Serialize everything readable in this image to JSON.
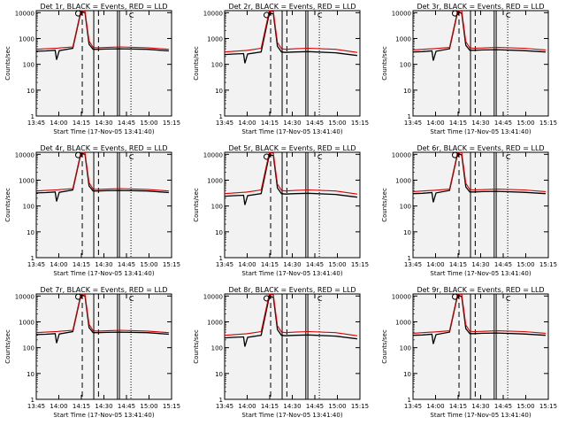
{
  "figure": {
    "background": "#ffffff",
    "plot_background": "#f2f2f2",
    "black_color": "#000000",
    "red_color": "#d40000"
  },
  "chart_data": [
    {
      "type": "line",
      "detector": "1",
      "title": "Det 1r, BLACK = Events, RED = LLD",
      "xlabel": "Start Time (17-Nov-05 13:41:40)",
      "ylabel": "Counts/sec",
      "xticks": [
        "13:45",
        "14:00",
        "14:15",
        "14:30",
        "14:45",
        "15:00",
        "15:15"
      ],
      "yticks": [
        "1",
        "10",
        "100",
        "1000",
        "10000"
      ],
      "yscale": "log",
      "ylim": [
        1,
        12000
      ],
      "series": [
        {
          "name": "Events",
          "color": "#000000",
          "x": [
            0,
            7,
            14,
            15,
            17,
            27,
            33,
            36,
            39,
            42,
            45,
            52,
            62,
            82,
            98
          ],
          "y": [
            320,
            330,
            350,
            150,
            340,
            420,
            11000,
            10000,
            600,
            380,
            380,
            390,
            400,
            380,
            330
          ]
        },
        {
          "name": "LLD",
          "color": "#d40000",
          "x": [
            0,
            7,
            14,
            15,
            17,
            27,
            33,
            36,
            39,
            42,
            45,
            52,
            62,
            82,
            98
          ],
          "y": [
            380,
            400,
            420,
            420,
            430,
            470,
            12000,
            11500,
            800,
            450,
            440,
            450,
            470,
            440,
            380
          ]
        }
      ],
      "markers": [
        {
          "style": "solid",
          "x": [
            42.5,
            60,
            61.5
          ]
        },
        {
          "style": "dashed",
          "x": [
            34,
            46
          ]
        },
        {
          "style": "dotted",
          "x": [
            70
          ]
        }
      ],
      "flag_label": "C"
    },
    {
      "type": "line",
      "detector": "2",
      "title": "Det 2r, BLACK = Events, RED = LLD",
      "xlabel": "Start Time (17-Nov-05 13:41:40)",
      "ylabel": "Counts/sec",
      "xticks": [
        "13:45",
        "14:00",
        "14:15",
        "14:30",
        "14:45",
        "15:00",
        "15:15"
      ],
      "yticks": [
        "1",
        "10",
        "100",
        "1000",
        "10000"
      ],
      "yscale": "log",
      "ylim": [
        1,
        12000
      ],
      "series": [
        {
          "name": "Events",
          "color": "#000000",
          "x": [
            0,
            7,
            14,
            15,
            17,
            27,
            33,
            36,
            39,
            42,
            45,
            52,
            62,
            82,
            98
          ],
          "y": [
            240,
            250,
            260,
            110,
            250,
            300,
            9500,
            9000,
            500,
            300,
            290,
            300,
            310,
            280,
            220
          ]
        },
        {
          "name": "LLD",
          "color": "#d40000",
          "x": [
            0,
            7,
            14,
            15,
            17,
            27,
            33,
            36,
            39,
            42,
            45,
            52,
            62,
            82,
            98
          ],
          "y": [
            300,
            320,
            340,
            340,
            350,
            420,
            12000,
            11000,
            700,
            400,
            380,
            400,
            420,
            380,
            290
          ]
        }
      ],
      "markers": [
        {
          "style": "solid",
          "x": [
            42.5,
            60,
            61.5
          ]
        },
        {
          "style": "dashed",
          "x": [
            34,
            46
          ]
        },
        {
          "style": "dotted",
          "x": [
            70
          ]
        }
      ],
      "flag_label": "C"
    },
    {
      "type": "line",
      "detector": "3",
      "title": "Det 3r, BLACK = Events, RED = LLD",
      "xlabel": "Start Time (17-Nov-05 13:41:40)",
      "ylabel": "Counts/sec",
      "xticks": [
        "13:45",
        "14:00",
        "14:15",
        "14:30",
        "14:45",
        "15:00",
        "15:15"
      ],
      "yticks": [
        "1",
        "10",
        "100",
        "1000",
        "10000"
      ],
      "yscale": "log",
      "ylim": [
        1,
        12000
      ],
      "series": [
        {
          "name": "Events",
          "color": "#000000",
          "x": [
            0,
            7,
            14,
            15,
            17,
            27,
            33,
            36,
            39,
            42,
            45,
            52,
            62,
            82,
            98
          ],
          "y": [
            300,
            310,
            330,
            140,
            320,
            400,
            11000,
            9500,
            550,
            350,
            350,
            360,
            370,
            340,
            300
          ]
        },
        {
          "name": "LLD",
          "color": "#d40000",
          "x": [
            0,
            7,
            14,
            15,
            17,
            27,
            33,
            36,
            39,
            42,
            45,
            52,
            62,
            82,
            98
          ],
          "y": [
            360,
            380,
            400,
            400,
            410,
            450,
            12000,
            11500,
            750,
            430,
            420,
            430,
            450,
            420,
            360
          ]
        }
      ],
      "markers": [
        {
          "style": "solid",
          "x": [
            42.5,
            60,
            61.5
          ]
        },
        {
          "style": "dashed",
          "x": [
            34,
            46
          ]
        },
        {
          "style": "dotted",
          "x": [
            70
          ]
        }
      ],
      "flag_label": "C"
    },
    {
      "type": "line",
      "detector": "4",
      "title": "Det 4r, BLACK = Events, RED = LLD",
      "xlabel": "Start Time (17-Nov-05 13:41:40)",
      "ylabel": "Counts/sec",
      "xticks": [
        "13:45",
        "14:00",
        "14:15",
        "14:30",
        "14:45",
        "15:00",
        "15:15"
      ],
      "yticks": [
        "1",
        "10",
        "100",
        "1000",
        "10000"
      ],
      "yscale": "log",
      "ylim": [
        1,
        12000
      ],
      "series": [
        {
          "name": "Events",
          "color": "#000000",
          "x": [
            0,
            7,
            14,
            15,
            17,
            27,
            33,
            36,
            39,
            42,
            45,
            52,
            62,
            82,
            98
          ],
          "y": [
            320,
            330,
            350,
            150,
            340,
            420,
            11000,
            10000,
            600,
            380,
            380,
            390,
            400,
            380,
            330
          ]
        },
        {
          "name": "LLD",
          "color": "#d40000",
          "x": [
            0,
            7,
            14,
            15,
            17,
            27,
            33,
            36,
            39,
            42,
            45,
            52,
            62,
            82,
            98
          ],
          "y": [
            380,
            400,
            420,
            420,
            430,
            470,
            12000,
            11500,
            800,
            450,
            440,
            450,
            470,
            440,
            380
          ]
        }
      ],
      "markers": [
        {
          "style": "solid",
          "x": [
            42.5,
            60,
            61.5
          ]
        },
        {
          "style": "dashed",
          "x": [
            34,
            46
          ]
        },
        {
          "style": "dotted",
          "x": [
            70
          ]
        }
      ],
      "flag_label": "C"
    },
    {
      "type": "line",
      "detector": "5",
      "title": "Det 5r, BLACK = Events, RED = LLD",
      "xlabel": "Start Time (17-Nov-05 13:41:40)",
      "ylabel": "Counts/sec",
      "xticks": [
        "13:45",
        "14:00",
        "14:15",
        "14:30",
        "14:45",
        "15:00",
        "15:15"
      ],
      "yticks": [
        "1",
        "10",
        "100",
        "1000",
        "10000"
      ],
      "yscale": "log",
      "ylim": [
        1,
        12000
      ],
      "series": [
        {
          "name": "Events",
          "color": "#000000",
          "x": [
            0,
            7,
            14,
            15,
            17,
            27,
            33,
            36,
            39,
            42,
            45,
            52,
            62,
            82,
            98
          ],
          "y": [
            240,
            250,
            260,
            110,
            250,
            300,
            9500,
            9000,
            500,
            300,
            290,
            300,
            310,
            280,
            220
          ]
        },
        {
          "name": "LLD",
          "color": "#d40000",
          "x": [
            0,
            7,
            14,
            15,
            17,
            27,
            33,
            36,
            39,
            42,
            45,
            52,
            62,
            82,
            98
          ],
          "y": [
            300,
            320,
            340,
            340,
            350,
            420,
            12000,
            11000,
            700,
            400,
            380,
            400,
            420,
            380,
            290
          ]
        }
      ],
      "markers": [
        {
          "style": "solid",
          "x": [
            42.5,
            60,
            61.5
          ]
        },
        {
          "style": "dashed",
          "x": [
            34,
            46
          ]
        },
        {
          "style": "dotted",
          "x": [
            70
          ]
        }
      ],
      "flag_label": "C"
    },
    {
      "type": "line",
      "detector": "6",
      "title": "Det 6r, BLACK = Events, RED = LLD",
      "xlabel": "Start Time (17-Nov-05 13:41:40)",
      "ylabel": "Counts/sec",
      "xticks": [
        "13:45",
        "14:00",
        "14:15",
        "14:30",
        "14:45",
        "15:00",
        "15:15"
      ],
      "yticks": [
        "1",
        "10",
        "100",
        "1000",
        "10000"
      ],
      "yscale": "log",
      "ylim": [
        1,
        12000
      ],
      "series": [
        {
          "name": "Events",
          "color": "#000000",
          "x": [
            0,
            7,
            14,
            15,
            17,
            27,
            33,
            36,
            39,
            42,
            45,
            52,
            62,
            82,
            98
          ],
          "y": [
            300,
            310,
            330,
            140,
            320,
            400,
            11000,
            9500,
            550,
            350,
            350,
            360,
            370,
            340,
            300
          ]
        },
        {
          "name": "LLD",
          "color": "#d40000",
          "x": [
            0,
            7,
            14,
            15,
            17,
            27,
            33,
            36,
            39,
            42,
            45,
            52,
            62,
            82,
            98
          ],
          "y": [
            360,
            380,
            400,
            400,
            410,
            450,
            12000,
            11500,
            750,
            430,
            420,
            430,
            450,
            420,
            360
          ]
        }
      ],
      "markers": [
        {
          "style": "solid",
          "x": [
            42.5,
            60,
            61.5
          ]
        },
        {
          "style": "dashed",
          "x": [
            34,
            46
          ]
        },
        {
          "style": "dotted",
          "x": [
            70
          ]
        }
      ],
      "flag_label": "C"
    },
    {
      "type": "line",
      "detector": "7",
      "title": "Det 7r, BLACK = Events, RED = LLD",
      "xlabel": "Start Time (17-Nov-05 13:41:40)",
      "ylabel": "Counts/sec",
      "xticks": [
        "13:45",
        "14:00",
        "14:15",
        "14:30",
        "14:45",
        "15:00",
        "15:15"
      ],
      "yticks": [
        "1",
        "10",
        "100",
        "1000",
        "10000"
      ],
      "yscale": "log",
      "ylim": [
        1,
        12000
      ],
      "series": [
        {
          "name": "Events",
          "color": "#000000",
          "x": [
            0,
            7,
            14,
            15,
            17,
            27,
            33,
            36,
            39,
            42,
            45,
            52,
            62,
            82,
            98
          ],
          "y": [
            320,
            330,
            350,
            150,
            340,
            420,
            11000,
            10000,
            600,
            380,
            380,
            390,
            400,
            380,
            330
          ]
        },
        {
          "name": "LLD",
          "color": "#d40000",
          "x": [
            0,
            7,
            14,
            15,
            17,
            27,
            33,
            36,
            39,
            42,
            45,
            52,
            62,
            82,
            98
          ],
          "y": [
            380,
            400,
            420,
            420,
            430,
            470,
            12000,
            11500,
            800,
            450,
            440,
            450,
            470,
            440,
            380
          ]
        }
      ],
      "markers": [
        {
          "style": "solid",
          "x": [
            42.5,
            60,
            61.5
          ]
        },
        {
          "style": "dashed",
          "x": [
            34,
            46
          ]
        },
        {
          "style": "dotted",
          "x": [
            70
          ]
        }
      ],
      "flag_label": "C"
    },
    {
      "type": "line",
      "detector": "8",
      "title": "Det 8r, BLACK = Events, RED = LLD",
      "xlabel": "Start Time (17-Nov-05 13:41:40)",
      "ylabel": "Counts/sec",
      "xticks": [
        "13:45",
        "14:00",
        "14:15",
        "14:30",
        "14:45",
        "15:00",
        "15:15"
      ],
      "yticks": [
        "1",
        "10",
        "100",
        "1000",
        "10000"
      ],
      "yscale": "log",
      "ylim": [
        1,
        12000
      ],
      "series": [
        {
          "name": "Events",
          "color": "#000000",
          "x": [
            0,
            7,
            14,
            15,
            17,
            27,
            33,
            36,
            39,
            42,
            45,
            52,
            62,
            82,
            98
          ],
          "y": [
            240,
            250,
            260,
            110,
            250,
            300,
            9500,
            9000,
            500,
            300,
            290,
            300,
            310,
            280,
            220
          ]
        },
        {
          "name": "LLD",
          "color": "#d40000",
          "x": [
            0,
            7,
            14,
            15,
            17,
            27,
            33,
            36,
            39,
            42,
            45,
            52,
            62,
            82,
            98
          ],
          "y": [
            300,
            320,
            340,
            340,
            350,
            420,
            12000,
            11000,
            700,
            400,
            380,
            400,
            420,
            380,
            290
          ]
        }
      ],
      "markers": [
        {
          "style": "solid",
          "x": [
            42.5,
            60,
            61.5
          ]
        },
        {
          "style": "dashed",
          "x": [
            34,
            46
          ]
        },
        {
          "style": "dotted",
          "x": [
            70
          ]
        }
      ],
      "flag_label": "C"
    },
    {
      "type": "line",
      "detector": "9",
      "title": "Det 9r, BLACK = Events, RED = LLD",
      "xlabel": "Start Time (17-Nov-05 13:41:40)",
      "ylabel": "Counts/sec",
      "xticks": [
        "13:45",
        "14:00",
        "14:15",
        "14:30",
        "14:45",
        "15:00",
        "15:15"
      ],
      "yticks": [
        "1",
        "10",
        "100",
        "1000",
        "10000"
      ],
      "yscale": "log",
      "ylim": [
        1,
        12000
      ],
      "series": [
        {
          "name": "Events",
          "color": "#000000",
          "x": [
            0,
            7,
            14,
            15,
            17,
            27,
            33,
            36,
            39,
            42,
            45,
            52,
            62,
            82,
            98
          ],
          "y": [
            300,
            310,
            330,
            140,
            320,
            400,
            11000,
            9500,
            550,
            350,
            350,
            360,
            370,
            340,
            300
          ]
        },
        {
          "name": "LLD",
          "color": "#d40000",
          "x": [
            0,
            7,
            14,
            15,
            17,
            27,
            33,
            36,
            39,
            42,
            45,
            52,
            62,
            82,
            98
          ],
          "y": [
            360,
            380,
            400,
            400,
            410,
            450,
            12000,
            11500,
            750,
            430,
            420,
            430,
            450,
            420,
            360
          ]
        }
      ],
      "markers": [
        {
          "style": "solid",
          "x": [
            42.5,
            60,
            61.5
          ]
        },
        {
          "style": "dashed",
          "x": [
            34,
            46
          ]
        },
        {
          "style": "dotted",
          "x": [
            70
          ]
        }
      ],
      "flag_label": "C"
    }
  ]
}
